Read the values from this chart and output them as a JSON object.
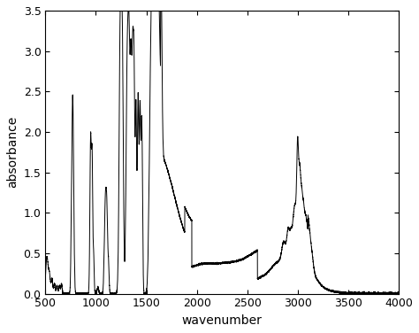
{
  "title": "",
  "xlabel": "wavenumber",
  "ylabel": "absorbance",
  "xlim": [
    500,
    4000
  ],
  "ylim": [
    0,
    3.5
  ],
  "xticks": [
    500,
    1000,
    1500,
    2000,
    2500,
    3000,
    3500,
    4000
  ],
  "yticks": [
    0,
    0.5,
    1.0,
    1.5,
    2.0,
    2.5,
    3.0,
    3.5
  ],
  "line_color": "#000000",
  "background_color": "#ffffff",
  "linewidth": 0.7
}
